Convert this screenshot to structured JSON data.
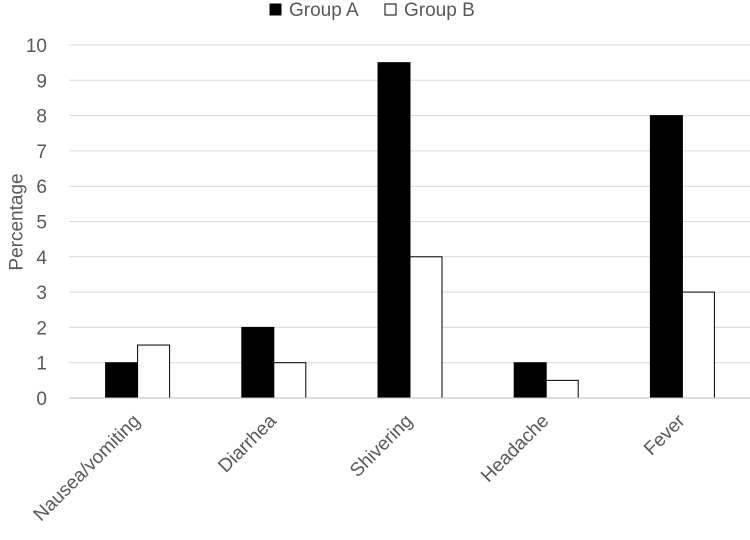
{
  "chart_data": {
    "type": "bar",
    "categories": [
      "Nausea/vomiting",
      "Diarrhea",
      "Shivering",
      "Headache",
      "Fever"
    ],
    "series": [
      {
        "name": "Group A",
        "values": [
          1,
          2,
          9.5,
          1,
          8
        ],
        "color": "#000000"
      },
      {
        "name": "Group B",
        "values": [
          1.5,
          1,
          4,
          0.5,
          3
        ],
        "color": "#ffffff"
      }
    ],
    "ylabel": "Percentage",
    "ylim": [
      0,
      10
    ],
    "yticks": [
      0,
      1,
      2,
      3,
      4,
      5,
      6,
      7,
      8,
      9,
      10
    ],
    "grid": true,
    "legend": "top-center"
  }
}
